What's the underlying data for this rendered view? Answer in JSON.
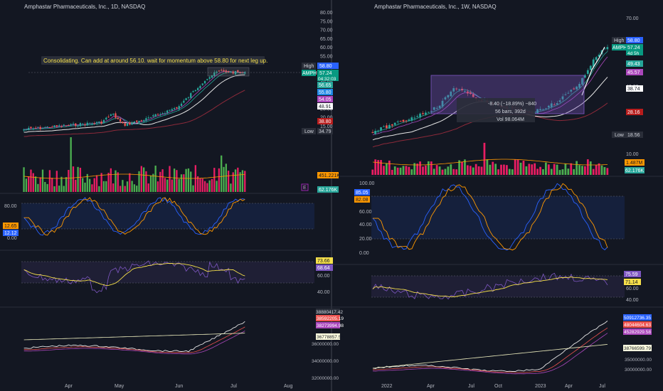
{
  "colors": {
    "background": "#131722",
    "grid": "#1e222d",
    "text": "#b2b5be",
    "up": "#26a69a",
    "down": "#ef5350",
    "upLabel": "#089981",
    "downLabel": "#f23645",
    "ma_white": "#e6e6e6",
    "ma_yellow": "#f6e04b",
    "stoch_blue": "#2962ff",
    "stoch_orange": "#ff9800",
    "rsi_purple": "#7e57c2",
    "vol_up": "#4caf50",
    "vol_down": "#e91e63"
  },
  "left": {
    "title": "Amphastar Pharmaceuticals, Inc., 1D, NASDAQ",
    "note": "Consolidating. Can add at around 56.10. wait for momentum above 58.80 for next leg up.",
    "price_axis": [
      "80.00",
      "75.00",
      "70.00",
      "65.00",
      "60.00",
      "55.00",
      "50.00",
      "45.00",
      "40.00",
      "35.00",
      "30.00",
      "25.00",
      "20.00",
      "15.00"
    ],
    "labels": {
      "high_word": "High",
      "high_val": "58.80",
      "ticker": "AMPH",
      "price": "57.24",
      "countdown": "04:32:03",
      "l1": "56.65",
      "l2": "55.80",
      "l3": "54.05",
      "l4": "48.91",
      "l5": "38.80",
      "low_word": "Low",
      "low_val": "34.79",
      "vol1": "451.221K",
      "vol2": "62.176K",
      "e_badge": "E"
    },
    "stoch": {
      "axis_top": "80.00",
      "axis_bottom": "0.00",
      "v1": "12.65",
      "v2": "12.12"
    },
    "rsi": {
      "axis_mid": "60.00",
      "axis_low": "40.00",
      "v1": "73.66",
      "v2": "68.64"
    },
    "obv": {
      "axis1": "40000000.00",
      "axis2": "36000000.00",
      "axis3": "34000000.00",
      "axis4": "32000000.00",
      "v1": "38880417.42",
      "v2": "38592205.19",
      "v3": "38273994.98",
      "v4": "36778857.55"
    },
    "time_axis": [
      "Apr",
      "May",
      "Jun",
      "Jul",
      "Aug"
    ]
  },
  "right": {
    "title": "Amphastar Pharmaceuticals, Inc., 1W, NASDAQ",
    "price_axis": [
      "70.00",
      "60.00",
      "50.00",
      "40.00",
      "30.00",
      "20.00",
      "10.00"
    ],
    "measure": {
      "line1": "-8.40 (−18.89%) −840",
      "line2": "56 bars, 392d",
      "line3": "Vol 98.064M"
    },
    "labels": {
      "high_word": "High",
      "high_val": "58.80",
      "ticker": "AMPH",
      "price": "57.24",
      "countdown": "4d 5h",
      "l1": "49.43",
      "l2": "45.57",
      "l3": "38.74",
      "l4": "28.16",
      "low_word": "Low",
      "low_val": "18.56",
      "vol1": "1.487M",
      "vol2": "62.176K"
    },
    "stoch": {
      "axis": [
        "100.00",
        "60.00",
        "40.00",
        "20.00",
        "0.00"
      ],
      "v1": "85.05",
      "v2": "82.08"
    },
    "rsi": {
      "axis": [
        "60.00",
        "40.00"
      ],
      "v1": "75.59",
      "v2": "71.14"
    },
    "obv": {
      "axis": [
        "35000000.00",
        "30000000.00"
      ],
      "v1": "50912736.35",
      "v2": "48044604.63",
      "v3": "45282929.58",
      "v4": "38766599.79"
    },
    "time_axis": [
      "2022",
      "Apr",
      "Jul",
      "Oct",
      "2023",
      "Apr",
      "Jul"
    ]
  }
}
